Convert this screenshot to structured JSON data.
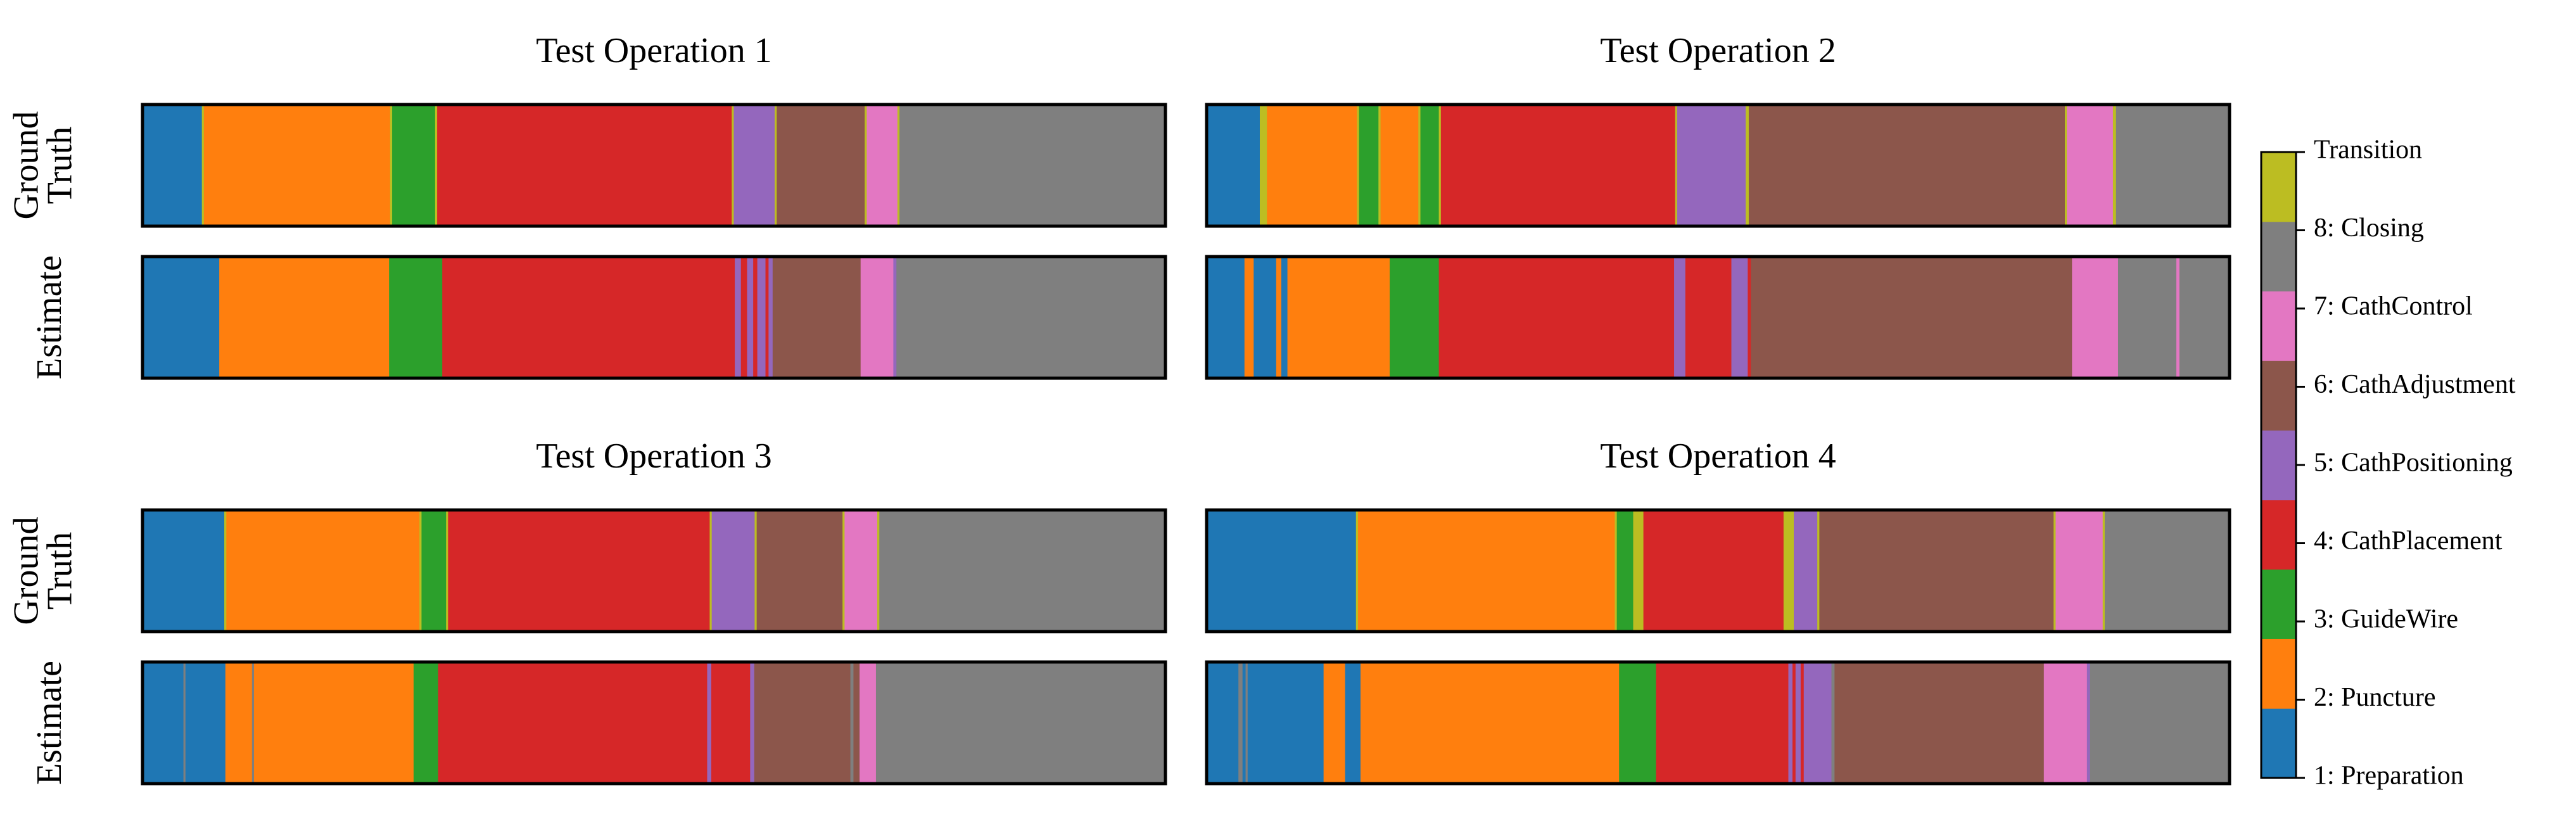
{
  "chart_data": {
    "type": "segmented-bar",
    "row_labels": {
      "ground_truth": [
        "Ground",
        "Truth"
      ],
      "estimate": [
        "Estimate"
      ]
    },
    "phases": [
      {
        "id": "1",
        "label": "1: Preparation",
        "color": "#1f77b4"
      },
      {
        "id": "2",
        "label": "2: Puncture",
        "color": "#ff7f0e"
      },
      {
        "id": "3",
        "label": "3: GuideWire",
        "color": "#2ca02c"
      },
      {
        "id": "4",
        "label": "4: CathPlacement",
        "color": "#d62728"
      },
      {
        "id": "5",
        "label": "5: CathPositioning",
        "color": "#9467bd"
      },
      {
        "id": "6",
        "label": "6: CathAdjustment",
        "color": "#8c564b"
      },
      {
        "id": "7",
        "label": "7: CathControl",
        "color": "#e377c2"
      },
      {
        "id": "8",
        "label": "8: Closing",
        "color": "#7f7f7f"
      },
      {
        "id": "T",
        "label": "Transition",
        "color": "#bcbd22"
      }
    ],
    "operations": [
      {
        "title": "Test Operation 1",
        "ground_truth": [
          [
            "1",
            5.8
          ],
          [
            "T",
            0.2
          ],
          [
            "2",
            18.2
          ],
          [
            "T",
            0.2
          ],
          [
            "3",
            4.2
          ],
          [
            "T",
            0.2
          ],
          [
            "4",
            28.8
          ],
          [
            "T",
            0.2
          ],
          [
            "5",
            4.0
          ],
          [
            "T",
            0.2
          ],
          [
            "6",
            8.6
          ],
          [
            "T",
            0.2
          ],
          [
            "7",
            3.0
          ],
          [
            "T",
            0.2
          ],
          [
            "8",
            26.0
          ]
        ],
        "estimate": [
          [
            "1",
            7.5
          ],
          [
            "2",
            16.6
          ],
          [
            "3",
            5.2
          ],
          [
            "4",
            28.6
          ],
          [
            "5",
            0.6
          ],
          [
            "4",
            0.6
          ],
          [
            "5",
            0.6
          ],
          [
            "4",
            0.4
          ],
          [
            "5",
            0.8
          ],
          [
            "4",
            0.3
          ],
          [
            "5",
            0.4
          ],
          [
            "6",
            8.6
          ],
          [
            "7",
            3.2
          ],
          [
            "5",
            0.3
          ],
          [
            "8",
            26.3
          ]
        ]
      },
      {
        "title": "Test Operation 2",
        "ground_truth": [
          [
            "1",
            5.2
          ],
          [
            "T",
            0.7
          ],
          [
            "2",
            8.8
          ],
          [
            "T",
            0.2
          ],
          [
            "3",
            1.9
          ],
          [
            "T",
            0.2
          ],
          [
            "2",
            3.7
          ],
          [
            "T",
            0.2
          ],
          [
            "3",
            1.8
          ],
          [
            "T",
            0.2
          ],
          [
            "4",
            22.9
          ],
          [
            "T",
            0.2
          ],
          [
            "5",
            6.7
          ],
          [
            "T",
            0.3
          ],
          [
            "6",
            30.9
          ],
          [
            "T",
            0.2
          ],
          [
            "7",
            4.5
          ],
          [
            "T",
            0.3
          ],
          [
            "8",
            11.1
          ]
        ],
        "estimate": [
          [
            "1",
            3.7
          ],
          [
            "2",
            0.9
          ],
          [
            "1",
            2.2
          ],
          [
            "2",
            0.5
          ],
          [
            "1",
            0.6
          ],
          [
            "2",
            10.0
          ],
          [
            "3",
            4.8
          ],
          [
            "4",
            23.0
          ],
          [
            "5",
            1.1
          ],
          [
            "4",
            4.5
          ],
          [
            "5",
            1.6
          ],
          [
            "4",
            0.3
          ],
          [
            "6",
            31.4
          ],
          [
            "7",
            4.5
          ],
          [
            "8",
            5.7
          ],
          [
            "7",
            0.3
          ],
          [
            "8",
            4.9
          ]
        ]
      },
      {
        "title": "Test Operation 3",
        "ground_truth": [
          [
            "1",
            8.0
          ],
          [
            "T",
            0.2
          ],
          [
            "2",
            18.9
          ],
          [
            "T",
            0.2
          ],
          [
            "3",
            2.4
          ],
          [
            "T",
            0.2
          ],
          [
            "4",
            25.6
          ],
          [
            "T",
            0.2
          ],
          [
            "5",
            4.2
          ],
          [
            "T",
            0.2
          ],
          [
            "6",
            8.4
          ],
          [
            "T",
            0.2
          ],
          [
            "7",
            3.2
          ],
          [
            "T",
            0.2
          ],
          [
            "8",
            28.0
          ]
        ],
        "estimate": [
          [
            "1",
            4.0
          ],
          [
            "8",
            0.2
          ],
          [
            "1",
            3.9
          ],
          [
            "2",
            2.6
          ],
          [
            "8",
            0.2
          ],
          [
            "2",
            15.6
          ],
          [
            "3",
            2.4
          ],
          [
            "4",
            26.3
          ],
          [
            "5",
            0.4
          ],
          [
            "4",
            3.8
          ],
          [
            "5",
            0.4
          ],
          [
            "6",
            9.4
          ],
          [
            "8",
            0.3
          ],
          [
            "6",
            0.6
          ],
          [
            "7",
            1.6
          ],
          [
            "8",
            28.3
          ]
        ]
      },
      {
        "title": "Test Operation 4",
        "ground_truth": [
          [
            "1",
            14.6
          ],
          [
            "T",
            0.2
          ],
          [
            "2",
            25.1
          ],
          [
            "T",
            0.2
          ],
          [
            "3",
            1.6
          ],
          [
            "T",
            1.0
          ],
          [
            "4",
            13.7
          ],
          [
            "T",
            1.0
          ],
          [
            "5",
            2.3
          ],
          [
            "T",
            0.2
          ],
          [
            "6",
            22.9
          ],
          [
            "T",
            0.2
          ],
          [
            "7",
            4.6
          ],
          [
            "T",
            0.2
          ],
          [
            "8",
            12.2
          ]
        ],
        "estimate": [
          [
            "1",
            3.1
          ],
          [
            "8",
            0.4
          ],
          [
            "1",
            0.3
          ],
          [
            "8",
            0.2
          ],
          [
            "1",
            7.4
          ],
          [
            "2",
            2.1
          ],
          [
            "1",
            1.5
          ],
          [
            "2",
            25.2
          ],
          [
            "3",
            3.6
          ],
          [
            "4",
            12.9
          ],
          [
            "5",
            0.4
          ],
          [
            "4",
            0.3
          ],
          [
            "5",
            0.5
          ],
          [
            "4",
            0.3
          ],
          [
            "5",
            2.7
          ],
          [
            "8",
            0.3
          ],
          [
            "6",
            20.4
          ],
          [
            "7",
            4.2
          ],
          [
            "5",
            0.3
          ],
          [
            "8",
            13.6
          ]
        ]
      }
    ]
  }
}
